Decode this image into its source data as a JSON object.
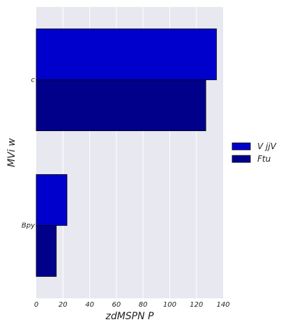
{
  "chart_data": {
    "type": "bar",
    "orientation": "horizontal",
    "categories": [
      "c",
      "Bpy"
    ],
    "series": [
      {
        "name": "V jjV",
        "values": [
          135,
          23
        ],
        "color": "#0000cd"
      },
      {
        "name": "Ftu",
        "values": [
          127,
          15
        ],
        "color": "#00008b"
      }
    ],
    "xlabel": "zdMSPN P",
    "ylabel": "MVi w",
    "xlim": [
      0,
      140
    ],
    "xticks": [
      0,
      20,
      40,
      60,
      80,
      100,
      120,
      140
    ],
    "grid": true,
    "legend_position": "right"
  }
}
